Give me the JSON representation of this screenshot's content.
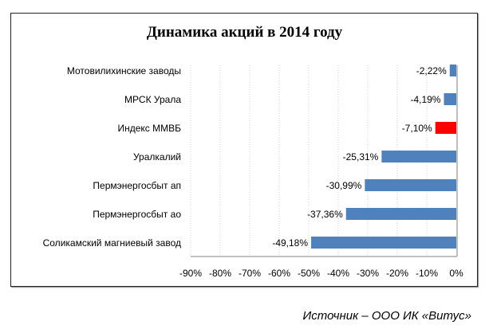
{
  "chart_data": {
    "type": "bar",
    "orientation": "horizontal",
    "title": "Динамика акций в 2014 году",
    "categories": [
      "Мотовилихинские заводы",
      "МРСК Урала",
      "Индекс ММВБ",
      "Уралкалий",
      "Пермэнергосбыт ап",
      "Пермэнергосбыт ао",
      "Соликамский магниевый завод"
    ],
    "values": [
      -2.22,
      -4.19,
      -7.1,
      -25.31,
      -30.99,
      -37.36,
      -49.18
    ],
    "data_labels": [
      "-2,22%",
      "-4,19%",
      "-7,10%",
      "-25,31%",
      "-30,99%",
      "-37,36%",
      "-49,18%"
    ],
    "colors": [
      "#4f81bd",
      "#4f81bd",
      "#ff0000",
      "#4f81bd",
      "#4f81bd",
      "#4f81bd",
      "#4f81bd"
    ],
    "xlim": [
      -90,
      0
    ],
    "xticks": [
      "-90%",
      "-80%",
      "-70%",
      "-60%",
      "-50%",
      "-40%",
      "-30%",
      "-20%",
      "-10%",
      "0%"
    ],
    "xlabel": "",
    "ylabel": "",
    "grid": "vertical dotted",
    "legend": "none"
  },
  "source": "Источник – ООО ИК «Витус»"
}
